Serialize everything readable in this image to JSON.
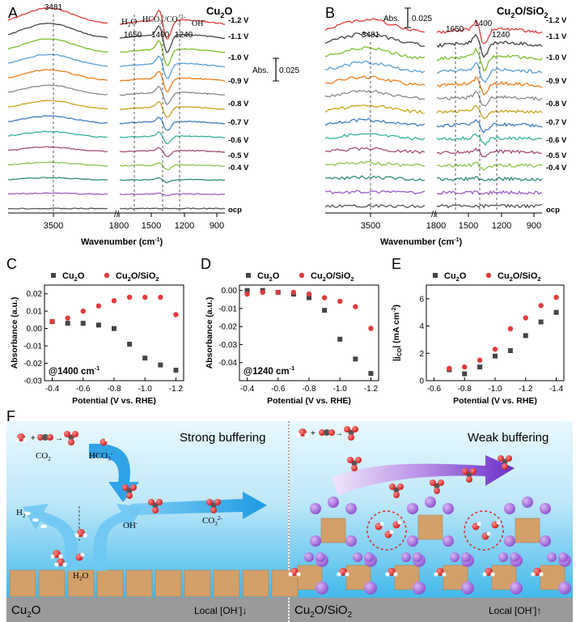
{
  "colors": {
    "trace_colors": [
      "#e23b3b",
      "#444444",
      "#7cbf2b",
      "#5aa0d8",
      "#ef7d1a",
      "#8a8a8a",
      "#c9a41b",
      "#3f7bc0",
      "#36b39a",
      "#a64d79",
      "#8bc34a",
      "#2f8f70",
      "#9e5ec8",
      "#555555"
    ],
    "cu2o_marker": "#444444",
    "cu2osio2_marker": "#e23b3b",
    "water_top": "#cdeefb",
    "water_bottom": "#3fb6e8",
    "substrate": "#9a9a9a",
    "cu2o_block": "#d3a06a",
    "sio2_sphere": "#a873d6",
    "arrow_blue": "#2fa4e7",
    "arrow_purple": "#7b3fd0"
  },
  "panels": {
    "A": {
      "letter": "A",
      "title": "Cu",
      "title_sub": "2",
      "title_end": "O",
      "wavenumber_3481": "3481",
      "h2o_label": "H",
      "h2o_sub": "2",
      "h2o_end": "O",
      "h2o_wn": "1650",
      "hco3_label": "HCO",
      "hco3_wn": "1400",
      "oh_label": "OH",
      "oh_wn": "1240",
      "scale_label": "Abs.",
      "scale_value": "0.025"
    },
    "B": {
      "letter": "B",
      "title": "Cu",
      "title_sub": "2",
      "title_mid": "O/SiO",
      "title_sub2": "2",
      "wavenumber_3481": "3481",
      "wn_1650": "1650",
      "wn_1400": "1400",
      "wn_1240": "1240",
      "scale_label": "Abs.",
      "scale_value": "0.025"
    },
    "potential_labels": [
      "-1.2 V",
      "-1.1 V",
      "-1.0 V",
      "-0.9 V",
      "-0.8 V",
      "-0.7 V",
      "-0.6 V",
      "-0.5 V",
      "-0.4 V",
      "ocp"
    ],
    "ir_ticks_left": [
      "3500"
    ],
    "ir_ticks_right": [
      "1800",
      "1500",
      "1200",
      "900"
    ],
    "ir_xlabel": "Wavenumber (cm",
    "ir_xlabel_sup": "-1",
    "ir_xlabel_end": ")"
  },
  "fig_F": {
    "letter": "F",
    "left_title": "Strong buffering",
    "right_title": "Weak buffering",
    "co2": "CO",
    "hco3": "HCO",
    "co3": "CO",
    "h2": "H",
    "oh": "OH",
    "h2o": "H",
    "left_bottom": "Cu",
    "right_bottom": "Cu",
    "right_bottom_mid": "O/SiO",
    "left_local": "Local [OH",
    "left_local_end": "]↓",
    "right_local": "Local [OH",
    "right_local_end": "]↑"
  },
  "chart_data": [
    {
      "type": "scatter",
      "panel": "C",
      "title": "",
      "annotation": "@1400 cm",
      "annotation_sup": "-1",
      "xlabel": "Potential (V vs. RHE)",
      "ylabel": "Absorbance (a.u.)",
      "xlim": [
        -0.35,
        -1.25
      ],
      "ylim": [
        -0.03,
        0.025
      ],
      "xticks": [
        "-0.4",
        "-0.6",
        "-0.8",
        "-1.0",
        "-1.2"
      ],
      "yticks": [
        "0.02",
        "0.01",
        "0.00",
        "-0.01",
        "-0.02",
        "-0.03"
      ],
      "legend": [
        "Cu2O",
        "Cu2O/SiO2"
      ],
      "series": [
        {
          "name": "Cu2O",
          "x": [
            -0.4,
            -0.5,
            -0.6,
            -0.7,
            -0.8,
            -0.9,
            -1.0,
            -1.1,
            -1.2
          ],
          "y": [
            0.004,
            0.003,
            0.003,
            0.002,
            0.0,
            -0.009,
            -0.017,
            -0.021,
            -0.024
          ]
        },
        {
          "name": "Cu2O/SiO2",
          "x": [
            -0.4,
            -0.5,
            -0.6,
            -0.7,
            -0.8,
            -0.9,
            -1.0,
            -1.1,
            -1.2
          ],
          "y": [
            0.004,
            0.006,
            0.01,
            0.013,
            0.016,
            0.018,
            0.018,
            0.018,
            0.008
          ]
        }
      ]
    },
    {
      "type": "scatter",
      "panel": "D",
      "title": "",
      "annotation": "@1240 cm",
      "annotation_sup": "-1",
      "xlabel": "Potential (V vs. RHE)",
      "ylabel": "Absorbance (a.u.)",
      "xlim": [
        -0.35,
        -1.25
      ],
      "ylim": [
        -0.05,
        0.003
      ],
      "xticks": [
        "-0.4",
        "-0.6",
        "-0.8",
        "-1.0",
        "-1.2"
      ],
      "yticks": [
        "0.00",
        "-0.01",
        "-0.02",
        "-0.03",
        "-0.04"
      ],
      "legend": [
        "Cu2O",
        "Cu2O/SiO2"
      ],
      "series": [
        {
          "name": "Cu2O",
          "x": [
            -0.4,
            -0.5,
            -0.6,
            -0.7,
            -0.8,
            -0.9,
            -1.0,
            -1.1,
            -1.2
          ],
          "y": [
            0.0,
            0.0,
            -0.001,
            -0.002,
            -0.004,
            -0.011,
            -0.027,
            -0.038,
            -0.046
          ]
        },
        {
          "name": "Cu2O/SiO2",
          "x": [
            -0.4,
            -0.5,
            -0.6,
            -0.7,
            -0.8,
            -0.9,
            -1.0,
            -1.1,
            -1.2
          ],
          "y": [
            -0.002,
            -0.001,
            -0.001,
            -0.001,
            -0.002,
            -0.004,
            -0.006,
            -0.009,
            -0.021
          ]
        }
      ]
    },
    {
      "type": "scatter",
      "panel": "E",
      "title": "",
      "xlabel": "Potential (V vs. RHE)",
      "ylabel": "|j",
      "ylabel_sub": "CO",
      "ylabel_end": "| (mA cm",
      "ylabel_sup": "-2",
      "xlim": [
        -0.55,
        -1.45
      ],
      "ylim": [
        0,
        7
      ],
      "xticks": [
        "-0.6",
        "-0.8",
        "-1.0",
        "-1.2",
        "-1.4"
      ],
      "yticks": [
        "0",
        "2",
        "4",
        "6"
      ],
      "legend": [
        "Cu2O",
        "Cu2O/SiO2"
      ],
      "series": [
        {
          "name": "Cu2O",
          "x": [
            -0.7,
            -0.8,
            -0.9,
            -1.0,
            -1.1,
            -1.2,
            -1.3,
            -1.4
          ],
          "y": [
            0.8,
            0.5,
            1.0,
            1.8,
            2.2,
            3.3,
            4.3,
            5.0
          ]
        },
        {
          "name": "Cu2O/SiO2",
          "x": [
            -0.7,
            -0.8,
            -0.9,
            -1.0,
            -1.1,
            -1.2,
            -1.3,
            -1.4
          ],
          "y": [
            0.9,
            1.0,
            1.5,
            2.3,
            3.8,
            4.6,
            5.5,
            6.1
          ]
        }
      ]
    }
  ]
}
